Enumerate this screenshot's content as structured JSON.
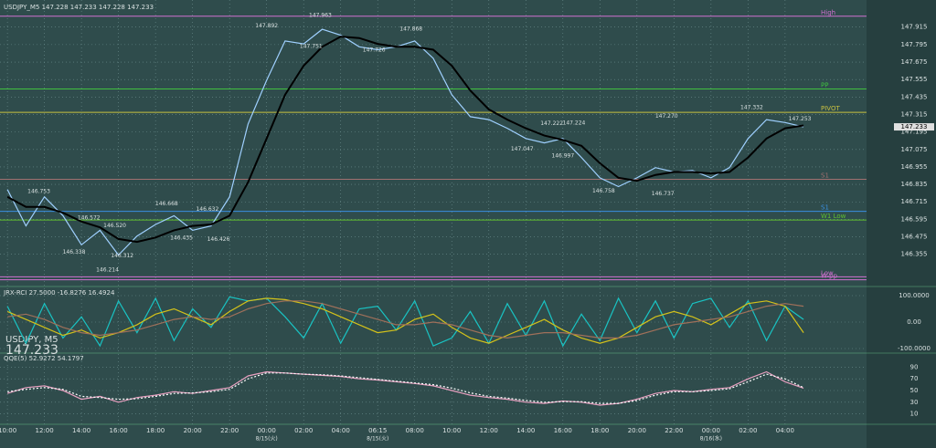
{
  "overlay": {
    "symbol": "USDJPY, M5",
    "price": "147.233"
  },
  "chart_data": [
    {
      "type": "line",
      "title": "USDJPY_M5 147.228 147.233 147.228 147.233",
      "x": [
        0,
        0.5,
        1,
        1.5,
        2,
        2.5,
        3,
        3.5,
        4,
        4.5,
        5,
        5.5,
        6,
        6.5,
        7,
        7.5,
        8,
        8.5,
        9,
        9.5,
        10,
        10.5,
        11,
        11.5,
        12,
        12.5,
        13,
        13.5,
        14,
        14.5,
        15,
        15.5,
        16,
        16.5,
        17,
        17.5,
        18,
        18.5,
        19,
        19.5,
        20,
        20.5,
        21,
        21.5
      ],
      "series": [
        {
          "color": "#9fd0ff",
          "values": [
            146.8,
            146.55,
            146.75,
            146.62,
            146.42,
            146.52,
            146.35,
            146.48,
            146.56,
            146.62,
            146.52,
            146.55,
            146.75,
            147.25,
            147.55,
            147.82,
            147.8,
            147.9,
            147.86,
            147.78,
            147.76,
            147.78,
            147.82,
            147.7,
            147.45,
            147.3,
            147.28,
            147.22,
            147.15,
            147.12,
            147.15,
            147.02,
            146.88,
            146.82,
            146.88,
            146.95,
            146.92,
            146.93,
            146.88,
            146.95,
            147.15,
            147.28,
            147.26,
            147.23
          ]
        },
        {
          "color": "#000000",
          "values": [
            146.75,
            146.68,
            146.68,
            146.64,
            146.58,
            146.54,
            146.46,
            146.44,
            146.47,
            146.52,
            146.55,
            146.56,
            146.62,
            146.85,
            147.15,
            147.45,
            147.65,
            147.78,
            147.85,
            147.84,
            147.8,
            147.78,
            147.78,
            147.76,
            147.65,
            147.48,
            147.35,
            147.28,
            147.22,
            147.17,
            147.14,
            147.1,
            146.98,
            146.88,
            146.86,
            146.9,
            146.92,
            146.92,
            146.91,
            146.92,
            147.02,
            147.15,
            147.22,
            147.24
          ]
        }
      ],
      "levels": [
        {
          "label": "High",
          "value": 147.99,
          "color": "#d070d0"
        },
        {
          "label": "PP",
          "value": 147.49,
          "color": "#40c040"
        },
        {
          "label": "PIVOT",
          "value": 147.33,
          "color": "#c8c040"
        },
        {
          "label": "S1",
          "value": 146.87,
          "color": "#a07070"
        },
        {
          "label": "S1",
          "value": 146.65,
          "color": "#3a8fe0"
        },
        {
          "label": "W1 Low",
          "value": 146.59,
          "color": "#60c030"
        },
        {
          "label": "Low",
          "value": 146.2,
          "color": "#d070d0"
        },
        {
          "label": "W-pp",
          "value": 146.18,
          "color": "#d070d0"
        }
      ],
      "annotations": [
        {
          "x": 8.45,
          "y": 147.963,
          "label": "147.963"
        },
        {
          "x": 7.0,
          "y": 147.892,
          "label": "147.892"
        },
        {
          "x": 8.2,
          "y": 147.751,
          "label": "147.751"
        },
        {
          "x": 9.9,
          "y": 147.726,
          "label": "147.726"
        },
        {
          "x": 10.9,
          "y": 147.868,
          "label": "147.868"
        },
        {
          "x": 20.1,
          "y": 147.332,
          "label": "147.332"
        },
        {
          "x": 17.8,
          "y": 147.27,
          "label": "147.270"
        },
        {
          "x": 21.4,
          "y": 147.253,
          "label": "147.253"
        },
        {
          "x": 14.7,
          "y": 147.222,
          "label": "147.222"
        },
        {
          "x": 15.3,
          "y": 147.224,
          "label": "147.224"
        },
        {
          "x": 13.9,
          "y": 147.047,
          "label": "147.047"
        },
        {
          "x": 15.0,
          "y": 146.997,
          "label": "146.997"
        },
        {
          "x": 16.1,
          "y": 146.758,
          "label": "146.758"
        },
        {
          "x": 17.7,
          "y": 146.737,
          "label": "146.737"
        },
        {
          "x": 0.85,
          "y": 146.753,
          "label": "146.753"
        },
        {
          "x": 2.2,
          "y": 146.572,
          "label": "146.572"
        },
        {
          "x": 2.9,
          "y": 146.52,
          "label": "146.520"
        },
        {
          "x": 1.8,
          "y": 146.338,
          "label": "146.338"
        },
        {
          "x": 3.1,
          "y": 146.312,
          "label": "146.312"
        },
        {
          "x": 2.7,
          "y": 146.214,
          "label": "146.214"
        },
        {
          "x": 4.3,
          "y": 146.668,
          "label": "146.668"
        },
        {
          "x": 5.4,
          "y": 146.632,
          "label": "146.632"
        },
        {
          "x": 4.7,
          "y": 146.435,
          "label": "146.435"
        },
        {
          "x": 5.7,
          "y": 146.426,
          "label": "146.426"
        }
      ],
      "xlim": [
        -0.2,
        23.2
      ],
      "ylim": [
        146.14,
        148.07
      ],
      "yticks": [
        146.355,
        146.475,
        146.595,
        146.715,
        146.835,
        146.955,
        147.075,
        147.195,
        147.315,
        147.435,
        147.555,
        147.675,
        147.795,
        147.915
      ],
      "xticks": [
        {
          "value": 0,
          "label": "10:00"
        },
        {
          "value": 1,
          "label": "12:00"
        },
        {
          "value": 2,
          "label": "14:00"
        },
        {
          "value": 3,
          "label": "16:00"
        },
        {
          "value": 4,
          "label": "18:00"
        },
        {
          "value": 5,
          "label": "20:00"
        },
        {
          "value": 6,
          "label": "22:00"
        },
        {
          "value": 7,
          "label": "00:00"
        },
        {
          "value": 8,
          "label": "02:00"
        },
        {
          "value": 9,
          "label": "04:00"
        },
        {
          "value": 10,
          "label": "06:15"
        },
        {
          "value": 11,
          "label": "08:00"
        },
        {
          "value": 12,
          "label": "10:00"
        },
        {
          "value": 13,
          "label": "12:00"
        },
        {
          "value": 14,
          "label": "14:00"
        },
        {
          "value": 15,
          "label": "16:00"
        },
        {
          "value": 16,
          "label": "18:00"
        },
        {
          "value": 17,
          "label": "20:00"
        },
        {
          "value": 18,
          "label": "22:00"
        },
        {
          "value": 19,
          "label": "00:00"
        },
        {
          "value": 20,
          "label": "02:00"
        },
        {
          "value": 21,
          "label": "04:00"
        }
      ],
      "dates": [
        {
          "x": 7,
          "label": "8/15(火)"
        },
        {
          "x": 10,
          "label": "8/15(火)"
        },
        {
          "x": 19,
          "label": "8/16(水)"
        }
      ],
      "grid": true
    },
    {
      "type": "line",
      "title": "JRX-RCI 27.5000 -16.8276 16.4924",
      "x": [
        0,
        0.5,
        1,
        1.5,
        2,
        2.5,
        3,
        3.5,
        4,
        4.5,
        5,
        5.5,
        6,
        6.5,
        7,
        7.5,
        8,
        8.5,
        9,
        9.5,
        10,
        10.5,
        11,
        11.5,
        12,
        12.5,
        13,
        13.5,
        14,
        14.5,
        15,
        15.5,
        16,
        16.5,
        17,
        17.5,
        18,
        18.5,
        19,
        19.5,
        20,
        20.5,
        21,
        21.5
      ],
      "series": [
        {
          "color": "#19c3c3",
          "values": [
            60,
            -80,
            70,
            -60,
            20,
            -90,
            80,
            -40,
            90,
            -70,
            50,
            -20,
            95,
            80,
            90,
            20,
            -60,
            70,
            -80,
            50,
            60,
            -30,
            80,
            -90,
            -60,
            40,
            -80,
            70,
            -50,
            80,
            -90,
            30,
            -70,
            90,
            -40,
            80,
            -60,
            70,
            90,
            -20,
            80,
            -70,
            60,
            10
          ]
        },
        {
          "color": "#d4c21a",
          "values": [
            40,
            10,
            -20,
            -50,
            -30,
            -60,
            -40,
            -10,
            30,
            50,
            20,
            -10,
            40,
            80,
            90,
            85,
            70,
            50,
            20,
            -10,
            -40,
            -30,
            10,
            30,
            -20,
            -60,
            -80,
            -50,
            -20,
            10,
            -30,
            -60,
            -80,
            -60,
            -20,
            20,
            40,
            20,
            -10,
            30,
            70,
            80,
            60,
            -40
          ]
        },
        {
          "color": "#a0705a",
          "values": [
            20,
            30,
            10,
            -20,
            -40,
            -50,
            -40,
            -30,
            -10,
            10,
            20,
            10,
            20,
            50,
            70,
            80,
            80,
            70,
            50,
            30,
            10,
            -10,
            -10,
            0,
            -10,
            -30,
            -50,
            -60,
            -50,
            -40,
            -40,
            -50,
            -60,
            -60,
            -50,
            -30,
            -10,
            0,
            10,
            20,
            40,
            60,
            70,
            60
          ]
        }
      ],
      "xlim": [
        -0.2,
        23.2
      ],
      "ylim": [
        -100,
        100
      ],
      "yticks": [
        {
          "value": -100,
          "label": "-100.0000"
        },
        {
          "value": 0,
          "label": "0.00"
        },
        {
          "value": 100,
          "label": "100.0000"
        }
      ],
      "grid": true
    },
    {
      "type": "line",
      "title": "QQE(5) 52.9272 54.1797",
      "x": [
        0,
        0.5,
        1,
        1.5,
        2,
        2.5,
        3,
        3.5,
        4,
        4.5,
        5,
        5.5,
        6,
        6.5,
        7,
        7.5,
        8,
        8.5,
        9,
        9.5,
        10,
        10.5,
        11,
        11.5,
        12,
        12.5,
        13,
        13.5,
        14,
        14.5,
        15,
        15.5,
        16,
        16.5,
        17,
        17.5,
        18,
        18.5,
        19,
        19.5,
        20,
        20.5,
        21,
        21.5
      ],
      "series": [
        {
          "color": "#e8a0c0",
          "dashed": false,
          "values": [
            45,
            55,
            58,
            50,
            35,
            40,
            30,
            38,
            42,
            48,
            45,
            50,
            55,
            75,
            82,
            80,
            78,
            76,
            74,
            70,
            68,
            65,
            62,
            58,
            50,
            42,
            38,
            35,
            30,
            28,
            32,
            30,
            25,
            28,
            35,
            45,
            50,
            48,
            52,
            55,
            70,
            82,
            65,
            54
          ]
        },
        {
          "color": "#ffffff",
          "dashed": true,
          "values": [
            48,
            52,
            55,
            52,
            40,
            38,
            35,
            36,
            40,
            45,
            46,
            48,
            52,
            70,
            80,
            80,
            78,
            77,
            75,
            72,
            69,
            66,
            63,
            60,
            54,
            46,
            40,
            37,
            33,
            30,
            31,
            31,
            28,
            28,
            33,
            42,
            48,
            48,
            50,
            53,
            65,
            78,
            70,
            55
          ]
        }
      ],
      "xlim": [
        -0.2,
        23.2
      ],
      "ylim": [
        0,
        100
      ],
      "yticks": [
        10,
        30,
        50,
        70,
        90
      ],
      "grid": true
    }
  ]
}
